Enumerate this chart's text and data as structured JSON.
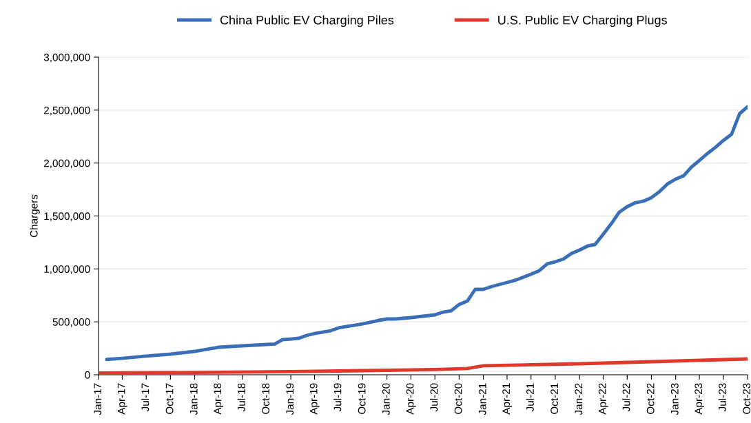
{
  "chart_data": {
    "type": "line",
    "ylabel": "Chargers",
    "legend": "top",
    "grid": "y",
    "line_style": "solid",
    "marker": "none",
    "xlim": [
      "2017-01",
      "2023-10"
    ],
    "xticks": [
      {
        "value": "2017-01",
        "label": "Jan-17"
      },
      {
        "value": "2017-04",
        "label": "Apr-17"
      },
      {
        "value": "2017-07",
        "label": "Jul-17"
      },
      {
        "value": "2017-10",
        "label": "Oct-17"
      },
      {
        "value": "2018-01",
        "label": "Jan-18"
      },
      {
        "value": "2018-04",
        "label": "Apr-18"
      },
      {
        "value": "2018-07",
        "label": "Jul-18"
      },
      {
        "value": "2018-10",
        "label": "Oct-18"
      },
      {
        "value": "2019-01",
        "label": "Jan-19"
      },
      {
        "value": "2019-04",
        "label": "Apr-19"
      },
      {
        "value": "2019-07",
        "label": "Jul-19"
      },
      {
        "value": "2019-10",
        "label": "Oct-19"
      },
      {
        "value": "2020-01",
        "label": "Jan-20"
      },
      {
        "value": "2020-04",
        "label": "Apr-20"
      },
      {
        "value": "2020-07",
        "label": "Jul-20"
      },
      {
        "value": "2020-10",
        "label": "Oct-20"
      },
      {
        "value": "2021-01",
        "label": "Jan-21"
      },
      {
        "value": "2021-04",
        "label": "Apr-21"
      },
      {
        "value": "2021-07",
        "label": "Jul-21"
      },
      {
        "value": "2021-10",
        "label": "Oct-21"
      },
      {
        "value": "2022-01",
        "label": "Jan-22"
      },
      {
        "value": "2022-04",
        "label": "Apr-22"
      },
      {
        "value": "2022-07",
        "label": "Jul-22"
      },
      {
        "value": "2022-10",
        "label": "Oct-22"
      },
      {
        "value": "2023-01",
        "label": "Jan-23"
      },
      {
        "value": "2023-04",
        "label": "Apr-23"
      },
      {
        "value": "2023-07",
        "label": "Jul-23"
      },
      {
        "value": "2023-10",
        "label": "Oct-23"
      }
    ],
    "ylim": [
      0,
      3000000
    ],
    "yticks": [
      {
        "value": 0,
        "label": "0"
      },
      {
        "value": 500000,
        "label": "500,000"
      },
      {
        "value": 1000000,
        "label": "1,000,000"
      },
      {
        "value": 1500000,
        "label": "1,500,000"
      },
      {
        "value": 2000000,
        "label": "2,000,000"
      },
      {
        "value": 2500000,
        "label": "2,500,000"
      },
      {
        "value": 3000000,
        "label": "3,000,000"
      }
    ],
    "series": [
      {
        "name": "China Public EV Charging Piles",
        "color": "#3a6fb8",
        "x": [
          "2017-02",
          "2017-04",
          "2017-07",
          "2017-10",
          "2018-01",
          "2018-03",
          "2018-04",
          "2018-07",
          "2018-10",
          "2018-11",
          "2018-12",
          "2019-01",
          "2019-02",
          "2019-03",
          "2019-04",
          "2019-06",
          "2019-07",
          "2019-10",
          "2019-12",
          "2020-01",
          "2020-02",
          "2020-04",
          "2020-07",
          "2020-08",
          "2020-09",
          "2020-10",
          "2020-11",
          "2020-12",
          "2021-01",
          "2021-02",
          "2021-04",
          "2021-05",
          "2021-07",
          "2021-08",
          "2021-09",
          "2021-10",
          "2021-11",
          "2021-12",
          "2022-01",
          "2022-02",
          "2022-03",
          "2022-04",
          "2022-05",
          "2022-06",
          "2022-07",
          "2022-08",
          "2022-09",
          "2022-10",
          "2022-11",
          "2022-12",
          "2023-01",
          "2023-02",
          "2023-03",
          "2023-04",
          "2023-05",
          "2023-06",
          "2023-07",
          "2023-08",
          "2023-09",
          "2023-10"
        ],
        "values": [
          145000,
          155000,
          176000,
          195000,
          221000,
          247000,
          260000,
          273000,
          286000,
          290000,
          332000,
          338000,
          345000,
          371000,
          390000,
          416000,
          443000,
          481000,
          514000,
          527000,
          527000,
          540000,
          566000,
          592000,
          605000,
          664000,
          696000,
          807000,
          807000,
          833000,
          872000,
          892000,
          950000,
          983000,
          1048000,
          1067000,
          1093000,
          1145000,
          1178000,
          1217000,
          1230000,
          1328000,
          1425000,
          1536000,
          1588000,
          1625000,
          1640000,
          1673000,
          1731000,
          1803000,
          1848000,
          1881000,
          1959000,
          2024000,
          2089000,
          2148000,
          2213000,
          2271000,
          2467000,
          2532000
        ]
      },
      {
        "name": "U.S. Public EV Charging Plugs",
        "color": "#e0382b",
        "x": [
          "2017-01",
          "2018-01",
          "2019-01",
          "2020-01",
          "2020-07",
          "2020-11",
          "2021-01",
          "2022-01",
          "2023-01",
          "2023-10"
        ],
        "values": [
          16000,
          22000,
          30000,
          42000,
          50000,
          59000,
          85000,
          104000,
          130000,
          150000
        ]
      }
    ]
  }
}
